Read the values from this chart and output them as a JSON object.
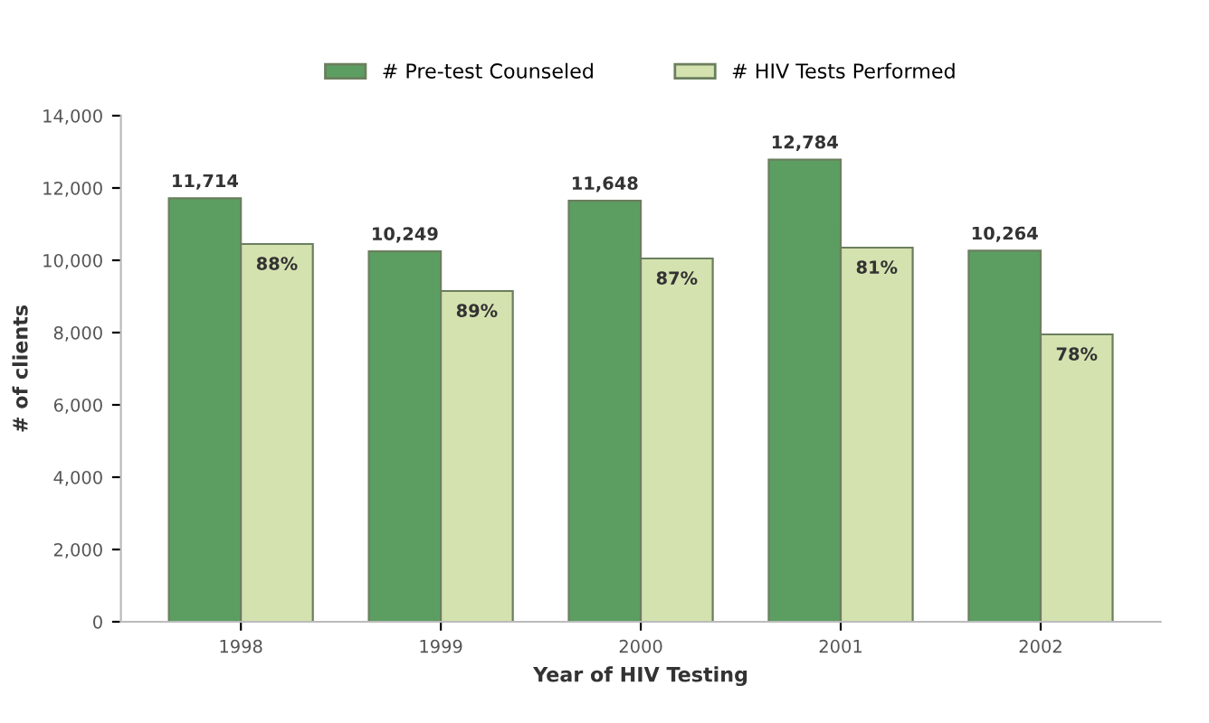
{
  "chart_data": {
    "type": "bar",
    "xlabel": "Year of HIV Testing",
    "ylabel": "# of clients",
    "categories": [
      "1998",
      "1999",
      "2000",
      "2001",
      "2002"
    ],
    "series": [
      {
        "name": "# Pre-test Counseled",
        "color": "#5c9e62",
        "values": [
          11714,
          10249,
          11648,
          12784,
          10264
        ],
        "value_labels": [
          "11,714",
          "10,249",
          "11,648",
          "12,784",
          "10,264"
        ]
      },
      {
        "name": "# HIV Tests Performed",
        "color": "#d4e2b0",
        "values": [
          10450,
          9150,
          10050,
          10350,
          7950
        ]
      }
    ],
    "annotations": [
      {
        "text": "88%",
        "x": "1998",
        "y": 10450
      },
      {
        "text": "89%",
        "x": "1999",
        "y": 9150
      },
      {
        "text": "87%",
        "x": "2000",
        "y": 10050
      },
      {
        "text": "81%",
        "x": "2001",
        "y": 10350
      },
      {
        "text": "78%",
        "x": "2002",
        "y": 7950
      }
    ],
    "ylim": [
      0,
      14000
    ],
    "yticks": [
      {
        "value": 0,
        "label": "0"
      },
      {
        "value": 2000,
        "label": "2,000"
      },
      {
        "value": 4000,
        "label": "4,000"
      },
      {
        "value": 6000,
        "label": "6,000"
      },
      {
        "value": 8000,
        "label": "8,000"
      },
      {
        "value": 10000,
        "label": "10,000"
      },
      {
        "value": 12000,
        "label": "12,000"
      },
      {
        "value": 14000,
        "label": "14,000"
      }
    ],
    "grid": false,
    "legend": "top"
  }
}
